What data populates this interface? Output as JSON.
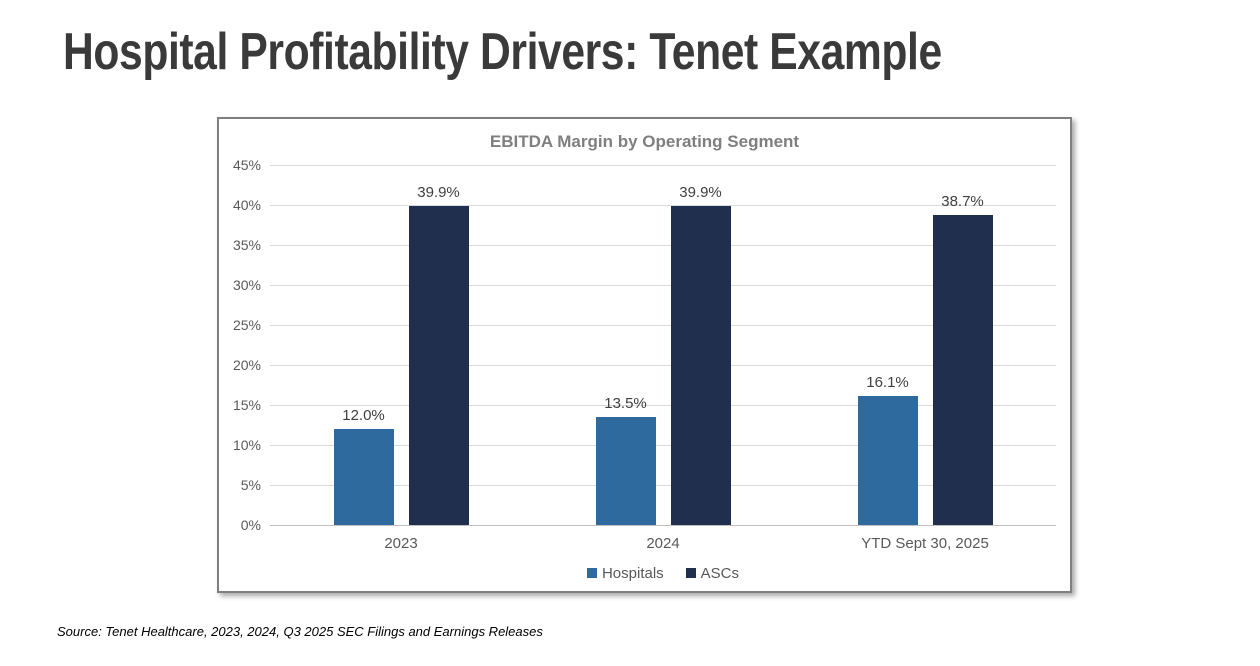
{
  "page": {
    "title": "Hospital Profitability Drivers: Tenet Example",
    "source_note": "Source: Tenet Healthcare, 2023, 2024, Q3 2025 SEC Filings and Earnings Releases"
  },
  "chart_data": {
    "type": "bar",
    "title": "EBITDA Margin by Operating Segment",
    "categories": [
      "2023",
      "2024",
      "YTD Sept 30, 2025"
    ],
    "series": [
      {
        "name": "Hospitals",
        "color": "#2E6A9D",
        "values": [
          12.0,
          13.5,
          16.1
        ],
        "labels": [
          "12.0%",
          "13.5%",
          "16.1%"
        ]
      },
      {
        "name": "ASCs",
        "color": "#212F4E",
        "values": [
          39.9,
          39.9,
          38.7
        ],
        "labels": [
          "39.9%",
          "39.9%",
          "38.7%"
        ]
      }
    ],
    "ylim": [
      0,
      45
    ],
    "ytick_step": 5,
    "ytick_labels": [
      "0%",
      "5%",
      "10%",
      "15%",
      "20%",
      "25%",
      "30%",
      "35%",
      "40%",
      "45%"
    ],
    "grid": true,
    "legend_position": "bottom",
    "colors": {
      "gridline": "#d9d9d9",
      "axis_line": "#bfbfbf",
      "tick_text": "#595959",
      "data_label_text": "#404040",
      "chart_title_text": "#7f7f7f",
      "chart_border": "#7f7f7f",
      "page_title_text": "#3a3a3a"
    }
  }
}
